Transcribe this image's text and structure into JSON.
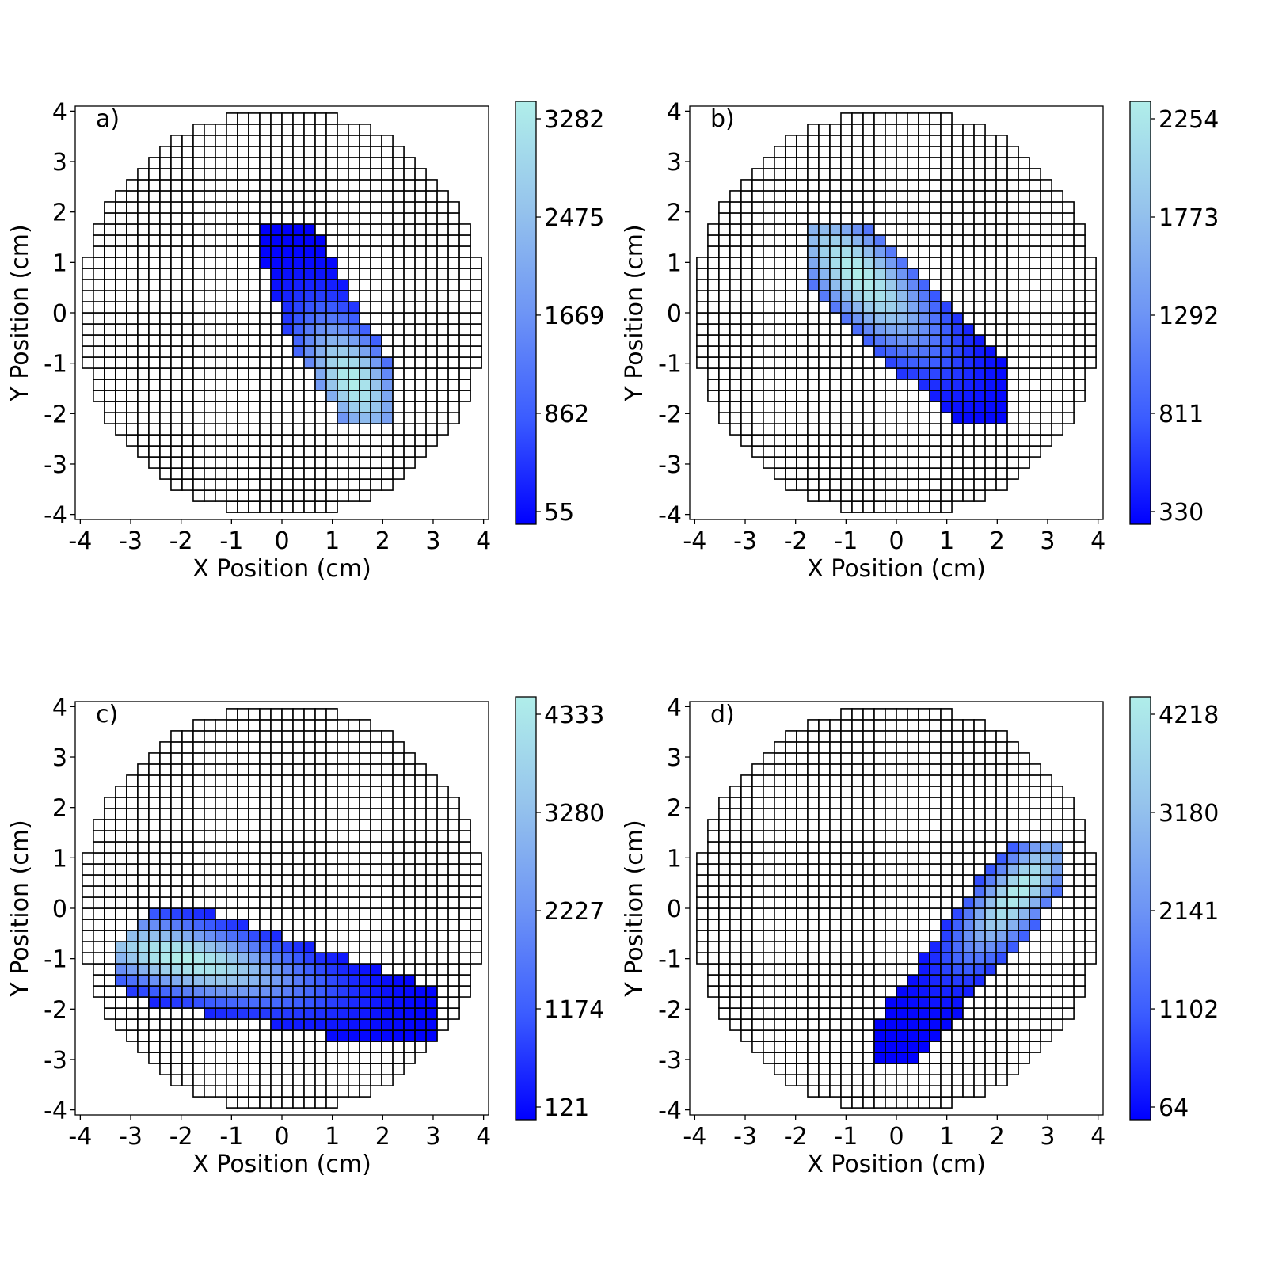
{
  "chart_data": [
    {
      "type": "heatmap",
      "panel_label": "a)",
      "xlabel": "X Position (cm)",
      "ylabel": "Y Position (cm)",
      "xlim": [
        -4.1,
        4.1
      ],
      "ylim": [
        -4.1,
        4.1
      ],
      "xticks": [
        -4,
        -3,
        -2,
        -1,
        0,
        1,
        2,
        3,
        4
      ],
      "yticks": [
        -4,
        -3,
        -2,
        -1,
        0,
        1,
        2,
        3,
        4
      ],
      "cell_pitch_cm": 0.22,
      "detector_radius_cm": 4.0,
      "colorbar": {
        "min": 55,
        "max": 3282,
        "ticks": [
          55,
          862,
          1669,
          2475,
          3282
        ],
        "colors": [
          "#0000ff",
          "#3b5cff",
          "#6e95f5",
          "#96c4ec",
          "#b0eeea"
        ]
      },
      "hit_region": {
        "polygon": [
          [
            -0.4,
            1.75
          ],
          [
            0.6,
            1.75
          ],
          [
            2.2,
            -1.1
          ],
          [
            2.2,
            -2.15
          ],
          [
            1.2,
            -2.15
          ],
          [
            0.25,
            -0.7
          ],
          [
            -0.4,
            1.0
          ]
        ],
        "peak": [
          1.4,
          -1.35
        ],
        "spread_cm": [
          1.4,
          0.75
        ],
        "angle_deg": -58
      }
    },
    {
      "type": "heatmap",
      "panel_label": "b)",
      "xlabel": "X Position (cm)",
      "ylabel": "Y Position (cm)",
      "xlim": [
        -4.1,
        4.1
      ],
      "ylim": [
        -4.1,
        4.1
      ],
      "xticks": [
        -4,
        -3,
        -2,
        -1,
        0,
        1,
        2,
        3,
        4
      ],
      "yticks": [
        -4,
        -3,
        -2,
        -1,
        0,
        1,
        2,
        3,
        4
      ],
      "cell_pitch_cm": 0.22,
      "detector_radius_cm": 4.0,
      "colorbar": {
        "min": 330,
        "max": 2254,
        "ticks": [
          330,
          811,
          1292,
          1773,
          2254
        ],
        "colors": [
          "#0000ff",
          "#3b5cff",
          "#6e95f5",
          "#96c4ec",
          "#b0eeea"
        ]
      },
      "hit_region": {
        "polygon": [
          [
            -1.75,
            1.75
          ],
          [
            -0.45,
            1.75
          ],
          [
            2.2,
            -1.1
          ],
          [
            2.2,
            -2.15
          ],
          [
            1.1,
            -2.15
          ],
          [
            -1.75,
            0.55
          ]
        ],
        "peak": [
          -0.75,
          0.75
        ],
        "spread_cm": [
          2.0,
          0.8
        ],
        "angle_deg": -45
      }
    },
    {
      "type": "heatmap",
      "panel_label": "c)",
      "xlabel": "X Position (cm)",
      "ylabel": "Y Position (cm)",
      "xlim": [
        -4.1,
        4.1
      ],
      "ylim": [
        -4.1,
        4.1
      ],
      "xticks": [
        -4,
        -3,
        -2,
        -1,
        0,
        1,
        2,
        3,
        4
      ],
      "yticks": [
        -4,
        -3,
        -2,
        -1,
        0,
        1,
        2,
        3,
        4
      ],
      "cell_pitch_cm": 0.22,
      "detector_radius_cm": 4.0,
      "colorbar": {
        "min": 121,
        "max": 4333,
        "ticks": [
          121,
          1174,
          2227,
          3280,
          4333
        ],
        "colors": [
          "#0000ff",
          "#3b5cff",
          "#6e95f5",
          "#96c4ec",
          "#b0eeea"
        ]
      },
      "hit_region": {
        "polygon": [
          [
            -2.55,
            0.0
          ],
          [
            -1.75,
            0.0
          ],
          [
            3.1,
            -1.55
          ],
          [
            3.1,
            -2.65
          ],
          [
            1.55,
            -2.65
          ],
          [
            -2.55,
            -1.9
          ],
          [
            -3.3,
            -1.55
          ],
          [
            -3.3,
            -0.65
          ]
        ],
        "peak": [
          -1.95,
          -1.0
        ],
        "spread_cm": [
          2.4,
          0.65
        ],
        "angle_deg": -12
      }
    },
    {
      "type": "heatmap",
      "panel_label": "d)",
      "xlabel": "X Position (cm)",
      "ylabel": "Y Position (cm)",
      "xlim": [
        -4.1,
        4.1
      ],
      "ylim": [
        -4.1,
        4.1
      ],
      "xticks": [
        -4,
        -3,
        -2,
        -1,
        0,
        1,
        2,
        3,
        4
      ],
      "yticks": [
        -4,
        -3,
        -2,
        -1,
        0,
        1,
        2,
        3,
        4
      ],
      "cell_pitch_cm": 0.22,
      "detector_radius_cm": 4.0,
      "colorbar": {
        "min": 64,
        "max": 4218,
        "ticks": [
          64,
          1102,
          2141,
          3180,
          4218
        ],
        "colors": [
          "#0000ff",
          "#3b5cff",
          "#6e95f5",
          "#96c4ec",
          "#b0eeea"
        ]
      },
      "hit_region": {
        "polygon": [
          [
            2.2,
            1.35
          ],
          [
            3.3,
            1.35
          ],
          [
            3.3,
            0.3
          ],
          [
            0.4,
            -3.05
          ],
          [
            -0.45,
            -3.05
          ],
          [
            -0.45,
            -2.3
          ]
        ],
        "peak": [
          2.4,
          0.3
        ],
        "spread_cm": [
          1.6,
          0.6
        ],
        "angle_deg": 50
      }
    }
  ]
}
